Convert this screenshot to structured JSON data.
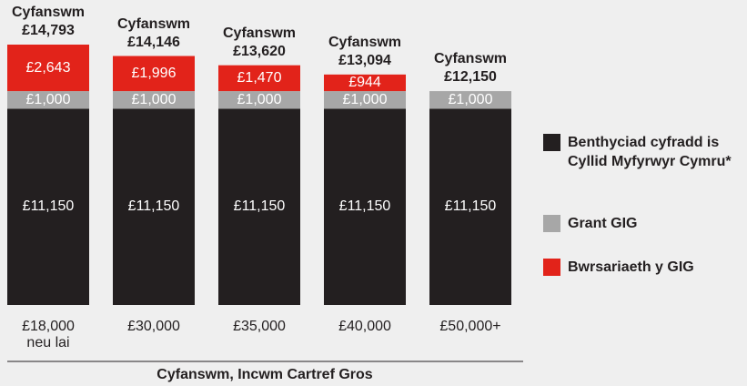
{
  "chart_data": {
    "type": "stacked_bar",
    "x_label": "Cyfanswm, Incwm Cartref Gros",
    "categories": [
      "£18,000 neu lai",
      "£30,000",
      "£35,000",
      "£40,000",
      "£50,000+"
    ],
    "total_title": "Cyfanswm",
    "totals": [
      "£14,793",
      "£14,146",
      "£13,620",
      "£13,094",
      "£12,150"
    ],
    "ylim": [
      0,
      15000
    ],
    "series": [
      {
        "name": "Benthyciad cyfradd is Cyllid Myfyrwyr Cymru*",
        "color": "#231f20",
        "values": [
          11150,
          11150,
          11150,
          11150,
          11150
        ],
        "value_labels": [
          "£11,150",
          "£11,150",
          "£11,150",
          "£11,150",
          "£11,150"
        ]
      },
      {
        "name": "Grant GIG",
        "color": "#a7a7a7",
        "values": [
          1000,
          1000,
          1000,
          1000,
          1000
        ],
        "value_labels": [
          "£1,000",
          "£1,000",
          "£1,000",
          "£1,000",
          "£1,000"
        ]
      },
      {
        "name": "Bwrsariaeth y GIG",
        "color": "#e2231a",
        "values": [
          2643,
          1996,
          1470,
          944,
          null
        ],
        "value_labels": [
          "£2,643",
          "£1,996",
          "£1,470",
          "£944",
          null
        ]
      }
    ]
  }
}
